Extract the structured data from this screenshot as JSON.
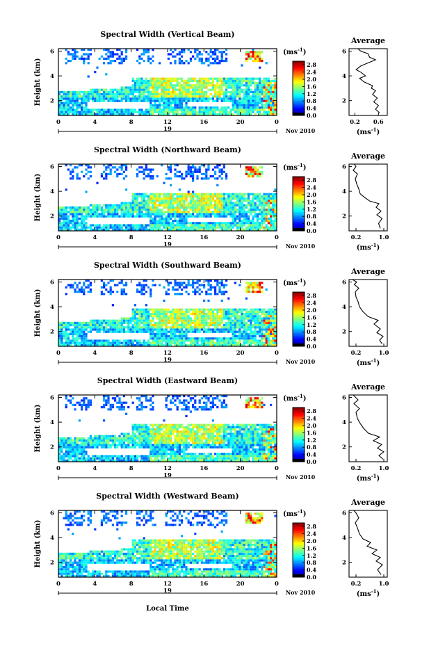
{
  "page": {
    "xlabel": "Local Time",
    "date_label": "Nov 2010",
    "day_label": "19",
    "ylabel": "Height (km)",
    "unit": "(ms",
    "unit_exp": "-1",
    "unit_close": ")",
    "avg_title": "Average"
  },
  "chart_data": [
    {
      "type": "heatmap",
      "title": "Spectral Width (Vertical Beam)",
      "xlabel": "Local Time",
      "ylabel": "Height (km)",
      "xlim": [
        0,
        24
      ],
      "ylim": [
        0.8,
        6.2
      ],
      "x_ticks": [
        "0",
        "4",
        "8",
        "12",
        "16",
        "20",
        "0"
      ],
      "y_ticks": [
        "2",
        "4",
        "6"
      ],
      "colorbar_ticks": [
        "0.0",
        "0.4",
        "0.8",
        "1.2",
        "1.6",
        "2.0",
        "2.4",
        "2.8"
      ],
      "colorbar_range": [
        0,
        3
      ],
      "colorbar_unit": "ms-1",
      "average_profile": {
        "title": "Average",
        "xlabel": "ms-1",
        "x_ticks": [
          "0.2",
          "0.6"
        ],
        "xlim": [
          0.1,
          0.75
        ],
        "y_ticks": [
          "2",
          "4",
          "6"
        ],
        "points": [
          [
            0.62,
            1.0
          ],
          [
            0.55,
            1.3
          ],
          [
            0.6,
            1.6
          ],
          [
            0.52,
            1.9
          ],
          [
            0.58,
            2.2
          ],
          [
            0.5,
            2.5
          ],
          [
            0.55,
            2.8
          ],
          [
            0.48,
            3.0
          ],
          [
            0.5,
            3.2
          ],
          [
            0.36,
            3.5
          ],
          [
            0.28,
            3.8
          ],
          [
            0.38,
            4.0
          ],
          [
            0.3,
            4.3
          ],
          [
            0.22,
            4.5
          ],
          [
            0.3,
            4.8
          ],
          [
            0.4,
            5.0
          ],
          [
            0.55,
            5.3
          ],
          [
            0.45,
            5.5
          ],
          [
            0.42,
            5.8
          ],
          [
            0.3,
            6.0
          ],
          [
            0.25,
            6.2
          ]
        ]
      }
    },
    {
      "type": "heatmap",
      "title": "Spectral Width (Northward Beam)",
      "xlabel": "Local Time",
      "ylabel": "Height (km)",
      "xlim": [
        0,
        24
      ],
      "ylim": [
        0.8,
        6.2
      ],
      "x_ticks": [
        "0",
        "4",
        "8",
        "12",
        "16",
        "20",
        "0"
      ],
      "y_ticks": [
        "2",
        "4",
        "6"
      ],
      "colorbar_ticks": [
        "0.0",
        "0.4",
        "0.8",
        "1.2",
        "1.6",
        "2.0",
        "2.4",
        "2.8"
      ],
      "colorbar_range": [
        0,
        3
      ],
      "colorbar_unit": "ms-1",
      "average_profile": {
        "title": "Average",
        "xlabel": "ms-1",
        "x_ticks": [
          "0.2",
          "1.0"
        ],
        "xlim": [
          0.0,
          1.1
        ],
        "y_ticks": [
          "2",
          "4",
          "6"
        ],
        "points": [
          [
            0.9,
            1.0
          ],
          [
            0.85,
            1.4
          ],
          [
            0.95,
            1.8
          ],
          [
            0.8,
            2.1
          ],
          [
            0.92,
            2.4
          ],
          [
            0.78,
            2.7
          ],
          [
            0.86,
            3.0
          ],
          [
            0.6,
            3.2
          ],
          [
            0.45,
            3.5
          ],
          [
            0.32,
            3.8
          ],
          [
            0.28,
            4.2
          ],
          [
            0.22,
            4.6
          ],
          [
            0.18,
            5.0
          ],
          [
            0.24,
            5.4
          ],
          [
            0.12,
            5.7
          ],
          [
            0.2,
            6.0
          ],
          [
            0.15,
            6.2
          ]
        ]
      }
    },
    {
      "type": "heatmap",
      "title": "Spectral Width (Southward Beam)",
      "xlabel": "Local Time",
      "ylabel": "Height (km)",
      "xlim": [
        0,
        24
      ],
      "ylim": [
        0.8,
        6.2
      ],
      "x_ticks": [
        "0",
        "4",
        "8",
        "12",
        "16",
        "20",
        "0"
      ],
      "y_ticks": [
        "2",
        "4",
        "6"
      ],
      "colorbar_ticks": [
        "0.0",
        "0.4",
        "0.8",
        "1.2",
        "1.6",
        "2.0",
        "2.4",
        "2.8"
      ],
      "colorbar_range": [
        0,
        3
      ],
      "colorbar_unit": "ms-1",
      "average_profile": {
        "title": "Average",
        "xlabel": "ms-1",
        "x_ticks": [
          "0.2",
          "1.0"
        ],
        "xlim": [
          0.0,
          1.1
        ],
        "y_ticks": [
          "2",
          "4",
          "6"
        ],
        "points": [
          [
            0.95,
            1.0
          ],
          [
            0.88,
            1.3
          ],
          [
            0.98,
            1.6
          ],
          [
            0.8,
            1.9
          ],
          [
            0.9,
            2.2
          ],
          [
            0.72,
            2.6
          ],
          [
            0.84,
            2.9
          ],
          [
            0.55,
            3.2
          ],
          [
            0.4,
            3.6
          ],
          [
            0.3,
            4.0
          ],
          [
            0.26,
            4.4
          ],
          [
            0.2,
            4.8
          ],
          [
            0.18,
            5.2
          ],
          [
            0.28,
            5.5
          ],
          [
            0.15,
            5.8
          ],
          [
            0.22,
            6.0
          ],
          [
            0.1,
            6.2
          ]
        ]
      }
    },
    {
      "type": "heatmap",
      "title": "Spectral Width (Eastward Beam)",
      "xlabel": "Local Time",
      "ylabel": "Height (km)",
      "xlim": [
        0,
        24
      ],
      "ylim": [
        0.8,
        6.2
      ],
      "x_ticks": [
        "0",
        "4",
        "8",
        "12",
        "16",
        "20",
        "0"
      ],
      "y_ticks": [
        "2",
        "4",
        "6"
      ],
      "colorbar_ticks": [
        "0.0",
        "0.4",
        "0.8",
        "1.2",
        "1.6",
        "2.0",
        "2.4",
        "2.8"
      ],
      "colorbar_range": [
        0,
        3
      ],
      "colorbar_unit": "ms-1",
      "average_profile": {
        "title": "Average",
        "xlabel": "ms-1",
        "x_ticks": [
          "0.2",
          "1.0"
        ],
        "xlim": [
          0.0,
          1.1
        ],
        "y_ticks": [
          "2",
          "4",
          "6"
        ],
        "points": [
          [
            0.98,
            1.0
          ],
          [
            0.86,
            1.3
          ],
          [
            1.0,
            1.6
          ],
          [
            0.82,
            1.9
          ],
          [
            0.94,
            2.2
          ],
          [
            0.7,
            2.5
          ],
          [
            0.88,
            2.8
          ],
          [
            0.56,
            3.1
          ],
          [
            0.42,
            3.5
          ],
          [
            0.32,
            3.9
          ],
          [
            0.24,
            4.3
          ],
          [
            0.2,
            4.8
          ],
          [
            0.3,
            5.1
          ],
          [
            0.14,
            5.5
          ],
          [
            0.26,
            5.8
          ],
          [
            0.12,
            6.2
          ]
        ]
      }
    },
    {
      "type": "heatmap",
      "title": "Spectral Width (Westward Beam)",
      "xlabel": "Local Time",
      "ylabel": "Height (km)",
      "xlim": [
        0,
        24
      ],
      "ylim": [
        0.8,
        6.2
      ],
      "x_ticks": [
        "0",
        "4",
        "8",
        "12",
        "16",
        "20",
        "0"
      ],
      "y_ticks": [
        "2",
        "4",
        "6"
      ],
      "colorbar_ticks": [
        "0.0",
        "0.4",
        "0.8",
        "1.2",
        "1.6",
        "2.0",
        "2.4",
        "2.8"
      ],
      "colorbar_range": [
        0,
        3
      ],
      "colorbar_unit": "ms-1",
      "average_profile": {
        "title": "Average",
        "xlabel": "ms-1",
        "x_ticks": [
          "0.2",
          "1.0"
        ],
        "xlim": [
          0.0,
          1.1
        ],
        "y_ticks": [
          "2",
          "4",
          "6"
        ],
        "points": [
          [
            0.92,
            1.0
          ],
          [
            0.82,
            1.4
          ],
          [
            0.96,
            1.8
          ],
          [
            0.78,
            2.1
          ],
          [
            0.9,
            2.4
          ],
          [
            0.66,
            2.7
          ],
          [
            0.8,
            3.0
          ],
          [
            0.52,
            3.3
          ],
          [
            0.62,
            3.6
          ],
          [
            0.4,
            3.9
          ],
          [
            0.3,
            4.3
          ],
          [
            0.24,
            4.8
          ],
          [
            0.18,
            5.2
          ],
          [
            0.28,
            5.6
          ],
          [
            0.2,
            6.0
          ],
          [
            0.14,
            6.2
          ]
        ]
      }
    }
  ]
}
